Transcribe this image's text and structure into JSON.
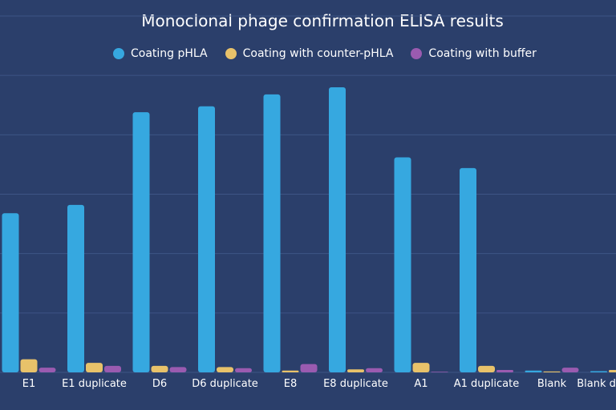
{
  "colors": {
    "background": "#2b3f6b",
    "series": [
      "#36a8e0",
      "#e8c26a",
      "#9a5bb0"
    ],
    "grid": "#3e5585"
  },
  "chart_data": {
    "type": "bar",
    "title": "Monoclonal phage confirmation ELISA results",
    "xlabel": "",
    "ylabel": "",
    "ylim": [
      0,
      3.0
    ],
    "grid": true,
    "legend": "top-center",
    "categories": [
      "E1",
      "E1 duplicate",
      "D6",
      "D6 duplicate",
      "E8",
      "E8 duplicate",
      "A1",
      "A1 duplicate",
      "Blank",
      "Blank duplicate"
    ],
    "series": [
      {
        "name": "Coating pHLA",
        "values": [
          1.34,
          1.41,
          2.19,
          2.24,
          2.34,
          2.4,
          1.81,
          1.72,
          0.015,
          0.01
        ]
      },
      {
        "name": "Coating with counter-pHLA",
        "values": [
          0.11,
          0.08,
          0.055,
          0.045,
          0.015,
          0.025,
          0.08,
          0.055,
          0.008,
          0.02
        ]
      },
      {
        "name": "Coating with buffer",
        "values": [
          0.04,
          0.055,
          0.045,
          0.035,
          0.07,
          0.035,
          0.005,
          0.02,
          0.04,
          0.0
        ]
      }
    ]
  }
}
